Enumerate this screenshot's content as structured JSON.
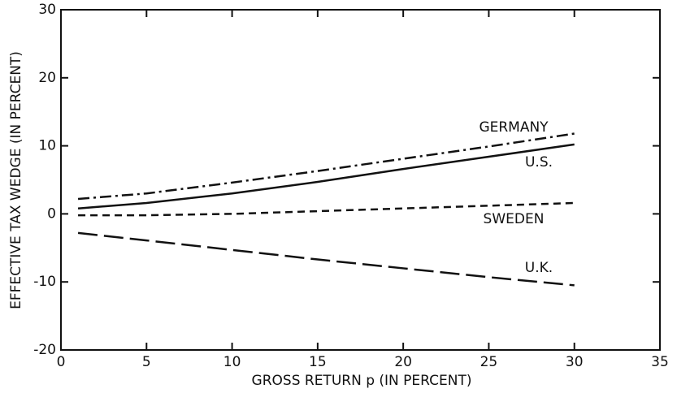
{
  "chart_data": {
    "type": "line",
    "xlabel": "GROSS RETURN p (IN PERCENT)",
    "ylabel": "EFFECTIVE TAX WEDGE (IN PERCENT)",
    "x": [
      1,
      5,
      10,
      15,
      20,
      25,
      30
    ],
    "series": [
      {
        "name": "GERMANY",
        "color": "#111111",
        "dash": "dashdot",
        "values": [
          2.2,
          3.0,
          4.6,
          6.3,
          8.1,
          9.9,
          11.8
        ]
      },
      {
        "name": "U.S.",
        "color": "#111111",
        "dash": "solid",
        "values": [
          0.8,
          1.6,
          3.0,
          4.7,
          6.6,
          8.4,
          10.2
        ]
      },
      {
        "name": "SWEDEN",
        "color": "#111111",
        "dash": "short",
        "values": [
          -0.2,
          -0.2,
          0.0,
          0.4,
          0.8,
          1.2,
          1.6
        ]
      },
      {
        "name": "U.K.",
        "color": "#111111",
        "dash": "long",
        "values": [
          -2.8,
          -3.9,
          -5.3,
          -6.7,
          -8.0,
          -9.3,
          -10.5
        ]
      }
    ],
    "xlim": [
      0,
      35
    ],
    "xticks": [
      0,
      5,
      10,
      15,
      20,
      25,
      30,
      35
    ],
    "ylim": [
      -20,
      30
    ],
    "yticks": [
      -20,
      -10,
      0,
      10,
      20,
      30
    ],
    "grid": false
  }
}
